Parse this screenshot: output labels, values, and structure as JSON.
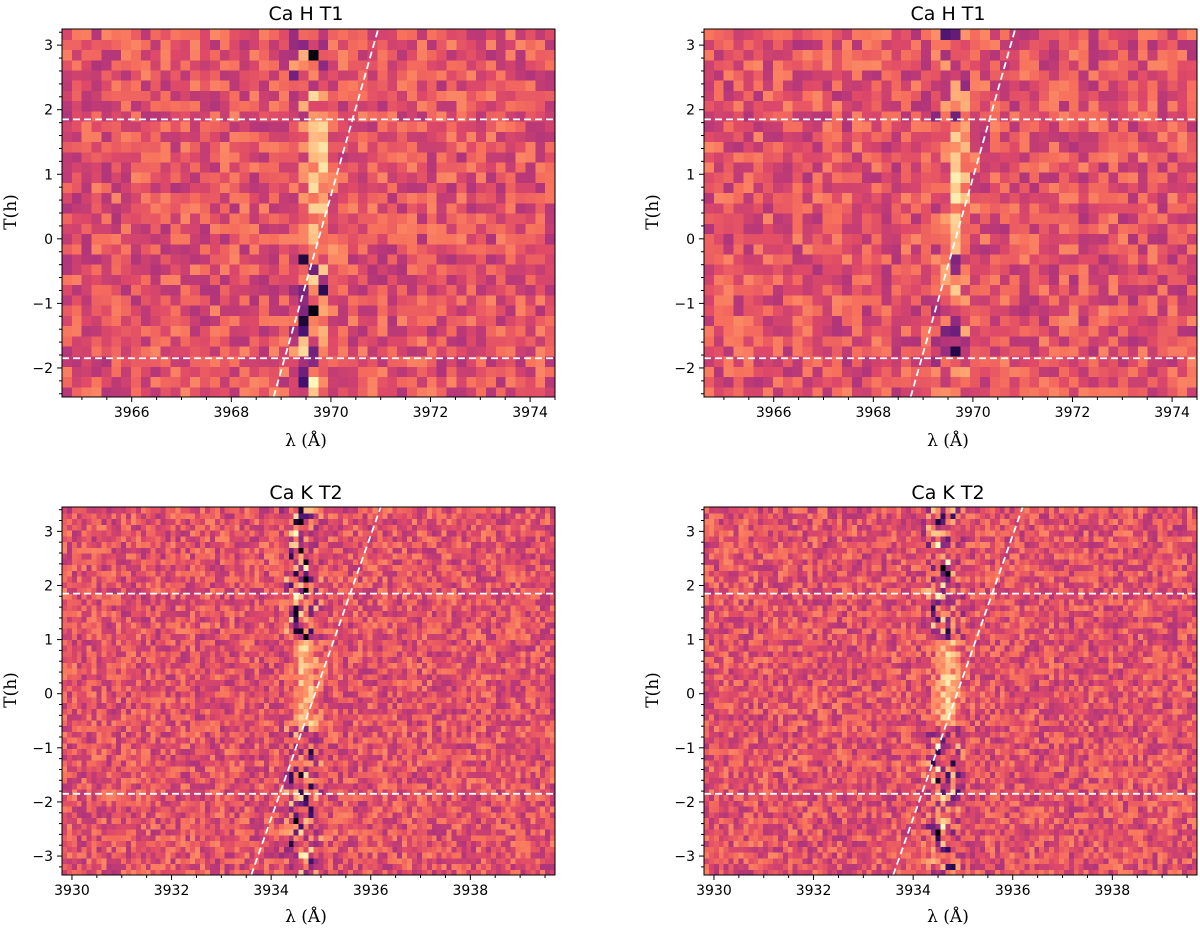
{
  "colormap": [
    "#000004",
    "#3b0f70",
    "#8c2981",
    "#b73779",
    "#de4968",
    "#f7705c",
    "#fe9f6d",
    "#fecf92",
    "#fcfdbf"
  ],
  "guide_color": "#ffffff",
  "chart_data": [
    {
      "type": "heatmap",
      "title": "Ca H T1",
      "xlabel": "λ (Å)",
      "ylabel": "T(h)",
      "xlim": [
        3964.6,
        3974.5
      ],
      "ylim": [
        -2.45,
        3.25
      ],
      "xticks": [
        3966,
        3968,
        3970,
        3972,
        3974
      ],
      "yticks": [
        -2,
        -1,
        0,
        1,
        2,
        3
      ],
      "grid": false,
      "guides": {
        "horizontal": [
          -1.85,
          1.85
        ],
        "diagonal": [
          [
            3968.85,
            -2.45
          ],
          [
            3970.95,
            3.25
          ]
        ]
      },
      "cells": {
        "nx": 50,
        "ny": 36
      },
      "features": {
        "emission_center": 3969.75,
        "emission_t_range": [
          -0.3,
          1.8
        ],
        "absorption_center": 3969.6
      }
    },
    {
      "type": "heatmap",
      "title": "Ca H T1",
      "xlabel": "λ (Å)",
      "ylabel": "T(h)",
      "xlim": [
        3964.6,
        3974.5
      ],
      "ylim": [
        -2.45,
        3.25
      ],
      "xticks": [
        3966,
        3968,
        3970,
        3972,
        3974
      ],
      "yticks": [
        -2,
        -1,
        0,
        1,
        2,
        3
      ],
      "grid": false,
      "guides": {
        "horizontal": [
          -1.85,
          1.85
        ],
        "diagonal": [
          [
            3968.75,
            -2.45
          ],
          [
            3970.85,
            3.25
          ]
        ]
      },
      "cells": {
        "nx": 50,
        "ny": 36
      },
      "features": {
        "emission_center": 3969.7,
        "emission_t_range": [
          -0.3,
          1.8
        ],
        "absorption_center": 3969.6
      }
    },
    {
      "type": "heatmap",
      "title": "Ca K T2",
      "xlabel": "λ (Å)",
      "ylabel": "T(h)",
      "xlim": [
        3929.8,
        3939.7
      ],
      "ylim": [
        -3.35,
        3.45
      ],
      "xticks": [
        3930,
        3932,
        3934,
        3936,
        3938
      ],
      "yticks": [
        -3,
        -2,
        -1,
        0,
        1,
        2,
        3
      ],
      "grid": false,
      "guides": {
        "horizontal": [
          -1.85,
          1.85
        ],
        "diagonal": [
          [
            3933.6,
            -3.35
          ],
          [
            3936.2,
            3.45
          ]
        ]
      },
      "cells": {
        "nx": 100,
        "ny": 64
      },
      "features": {
        "emission_center": 3934.7,
        "emission_t_range": [
          -0.6,
          1.0
        ],
        "absorption_center": 3934.6
      }
    },
    {
      "type": "heatmap",
      "title": "Ca K T2",
      "xlabel": "λ (Å)",
      "ylabel": "T(h)",
      "xlim": [
        3929.8,
        3939.7
      ],
      "ylim": [
        -3.35,
        3.45
      ],
      "xticks": [
        3930,
        3932,
        3934,
        3936,
        3938
      ],
      "yticks": [
        -3,
        -2,
        -1,
        0,
        1,
        2,
        3
      ],
      "grid": false,
      "guides": {
        "horizontal": [
          -1.85,
          1.85
        ],
        "diagonal": [
          [
            3933.6,
            -3.35
          ],
          [
            3936.2,
            3.45
          ]
        ]
      },
      "cells": {
        "nx": 100,
        "ny": 64
      },
      "features": {
        "emission_center": 3934.7,
        "emission_t_range": [
          -0.6,
          1.0
        ],
        "absorption_center": 3934.6
      }
    }
  ]
}
